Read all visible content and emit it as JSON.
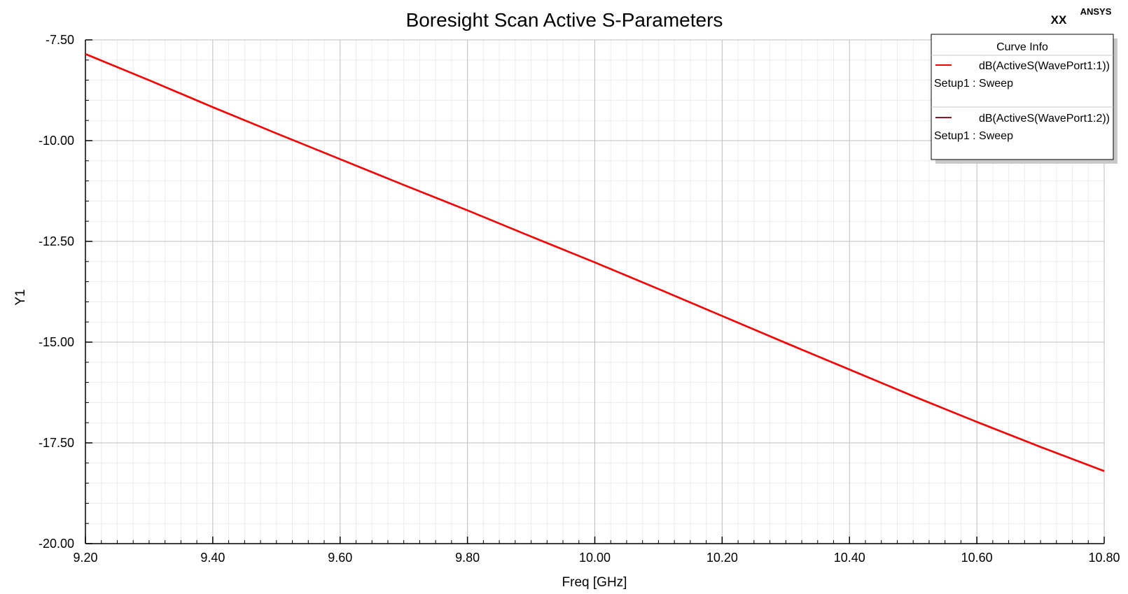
{
  "header": {
    "watermark": "XX",
    "brand": "ANSYS"
  },
  "legend": {
    "title": "Curve Info",
    "entries": [
      {
        "label": "dB(ActiveS(WavePort1:1))",
        "sublabel": "Setup1 : Sweep",
        "color": "#ff0000"
      },
      {
        "label": "dB(ActiveS(WavePort1:2))",
        "sublabel": "Setup1 : Sweep",
        "color": "#8b1a2b"
      }
    ]
  },
  "chart_data": {
    "type": "line",
    "title": "Boresight Scan Active S-Parameters",
    "xlabel": "Freq [GHz]",
    "ylabel": "Y1",
    "xlim": [
      9.2,
      10.8
    ],
    "ylim": [
      -20.0,
      -7.5
    ],
    "x_ticks": [
      "9.20",
      "9.40",
      "9.60",
      "9.80",
      "10.00",
      "10.20",
      "10.40",
      "10.60",
      "10.80"
    ],
    "y_ticks": [
      "-7.50",
      "-10.00",
      "-12.50",
      "-15.00",
      "-17.50",
      "-20.00"
    ],
    "grid": true,
    "legend_position": "top-right",
    "series": [
      {
        "name": "dB(ActiveS(WavePort1:1))",
        "color": "#ff0000",
        "x": [
          9.2,
          9.3,
          9.4,
          9.5,
          9.6,
          9.7,
          9.8,
          9.9,
          10.0,
          10.1,
          10.2,
          10.3,
          10.4,
          10.5,
          10.6,
          10.7,
          10.8
        ],
        "y": [
          -7.85,
          -8.5,
          -9.17,
          -9.82,
          -10.46,
          -11.1,
          -11.73,
          -12.38,
          -13.02,
          -13.68,
          -14.35,
          -15.02,
          -15.68,
          -16.34,
          -16.98,
          -17.6,
          -18.2
        ]
      },
      {
        "name": "dB(ActiveS(WavePort1:2))",
        "color": "#8b1a2b",
        "x": [
          9.2,
          9.3,
          9.4,
          9.5,
          9.6,
          9.7,
          9.8,
          9.9,
          10.0,
          10.1,
          10.2,
          10.3,
          10.4,
          10.5,
          10.6,
          10.7,
          10.8
        ],
        "y": [
          -7.85,
          -8.5,
          -9.17,
          -9.82,
          -10.46,
          -11.1,
          -11.73,
          -12.38,
          -13.02,
          -13.68,
          -14.35,
          -15.02,
          -15.68,
          -16.34,
          -16.98,
          -17.6,
          -18.2
        ]
      }
    ]
  }
}
